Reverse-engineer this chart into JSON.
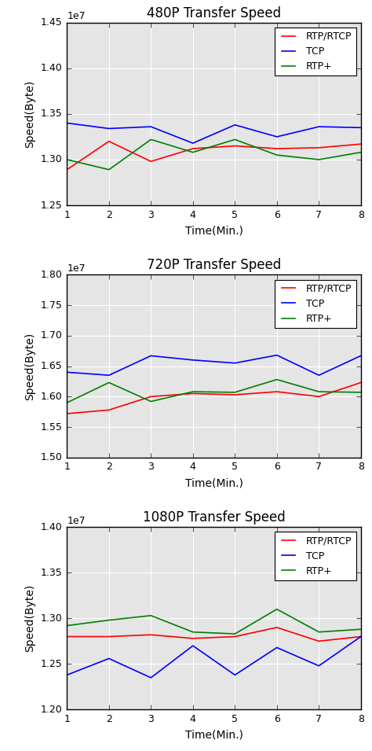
{
  "x": [
    1,
    2,
    3,
    4,
    5,
    6,
    7,
    8
  ],
  "charts": [
    {
      "title": "480P Transfer Speed",
      "ylim": [
        12500000.0,
        14500000.0
      ],
      "yticks": [
        12500000.0,
        13000000.0,
        13500000.0,
        14000000.0,
        14500000.0
      ],
      "rtp_rtcp": [
        12890000.0,
        13200000.0,
        12980000.0,
        13120000.0,
        13150000.0,
        13120000.0,
        13130000.0,
        13170000.0
      ],
      "tcp": [
        13400000.0,
        13340000.0,
        13360000.0,
        13180000.0,
        13380000.0,
        13250000.0,
        13360000.0,
        13350000.0
      ],
      "rtp_plus": [
        13000000.0,
        12890000.0,
        13220000.0,
        13080000.0,
        13220000.0,
        13050000.0,
        13000000.0,
        13080000.0
      ]
    },
    {
      "title": "720P Transfer Speed",
      "ylim": [
        15000000.0,
        18000000.0
      ],
      "yticks": [
        15000000.0,
        15500000.0,
        16000000.0,
        16500000.0,
        17000000.0,
        17500000.0,
        18000000.0
      ],
      "rtp_rtcp": [
        15720000.0,
        15780000.0,
        16000000.0,
        16050000.0,
        16030000.0,
        16080000.0,
        16000000.0,
        16230000.0
      ],
      "tcp": [
        16400000.0,
        16350000.0,
        16670000.0,
        16600000.0,
        16550000.0,
        16680000.0,
        16350000.0,
        16670000.0
      ],
      "rtp_plus": [
        15900000.0,
        16230000.0,
        15920000.0,
        16080000.0,
        16070000.0,
        16280000.0,
        16080000.0,
        16070000.0
      ]
    },
    {
      "title": "1080P Transfer Speed",
      "ylim": [
        12000000.0,
        14000000.0
      ],
      "yticks": [
        12000000.0,
        12500000.0,
        13000000.0,
        13500000.0,
        14000000.0
      ],
      "rtp_rtcp": [
        12800000.0,
        12800000.0,
        12820000.0,
        12780000.0,
        12800000.0,
        12900000.0,
        12750000.0,
        12800000.0
      ],
      "tcp": [
        12380000.0,
        12560000.0,
        12350000.0,
        12700000.0,
        12380000.0,
        12680000.0,
        12480000.0,
        12800000.0
      ],
      "rtp_plus": [
        12920000.0,
        12980000.0,
        13030000.0,
        12850000.0,
        12830000.0,
        13100000.0,
        12850000.0,
        12880000.0
      ]
    }
  ],
  "colors": {
    "rtp_rtcp": "red",
    "tcp": "blue",
    "rtp_plus": "green"
  },
  "xlabel": "Time(Min.)",
  "ylabel": "Speed(Byte)",
  "legend_labels": [
    "RTP/RTCP",
    "TCP",
    "RTP+"
  ],
  "bg_color": "#e5e5e5",
  "fig_color": "#f0f0f0"
}
